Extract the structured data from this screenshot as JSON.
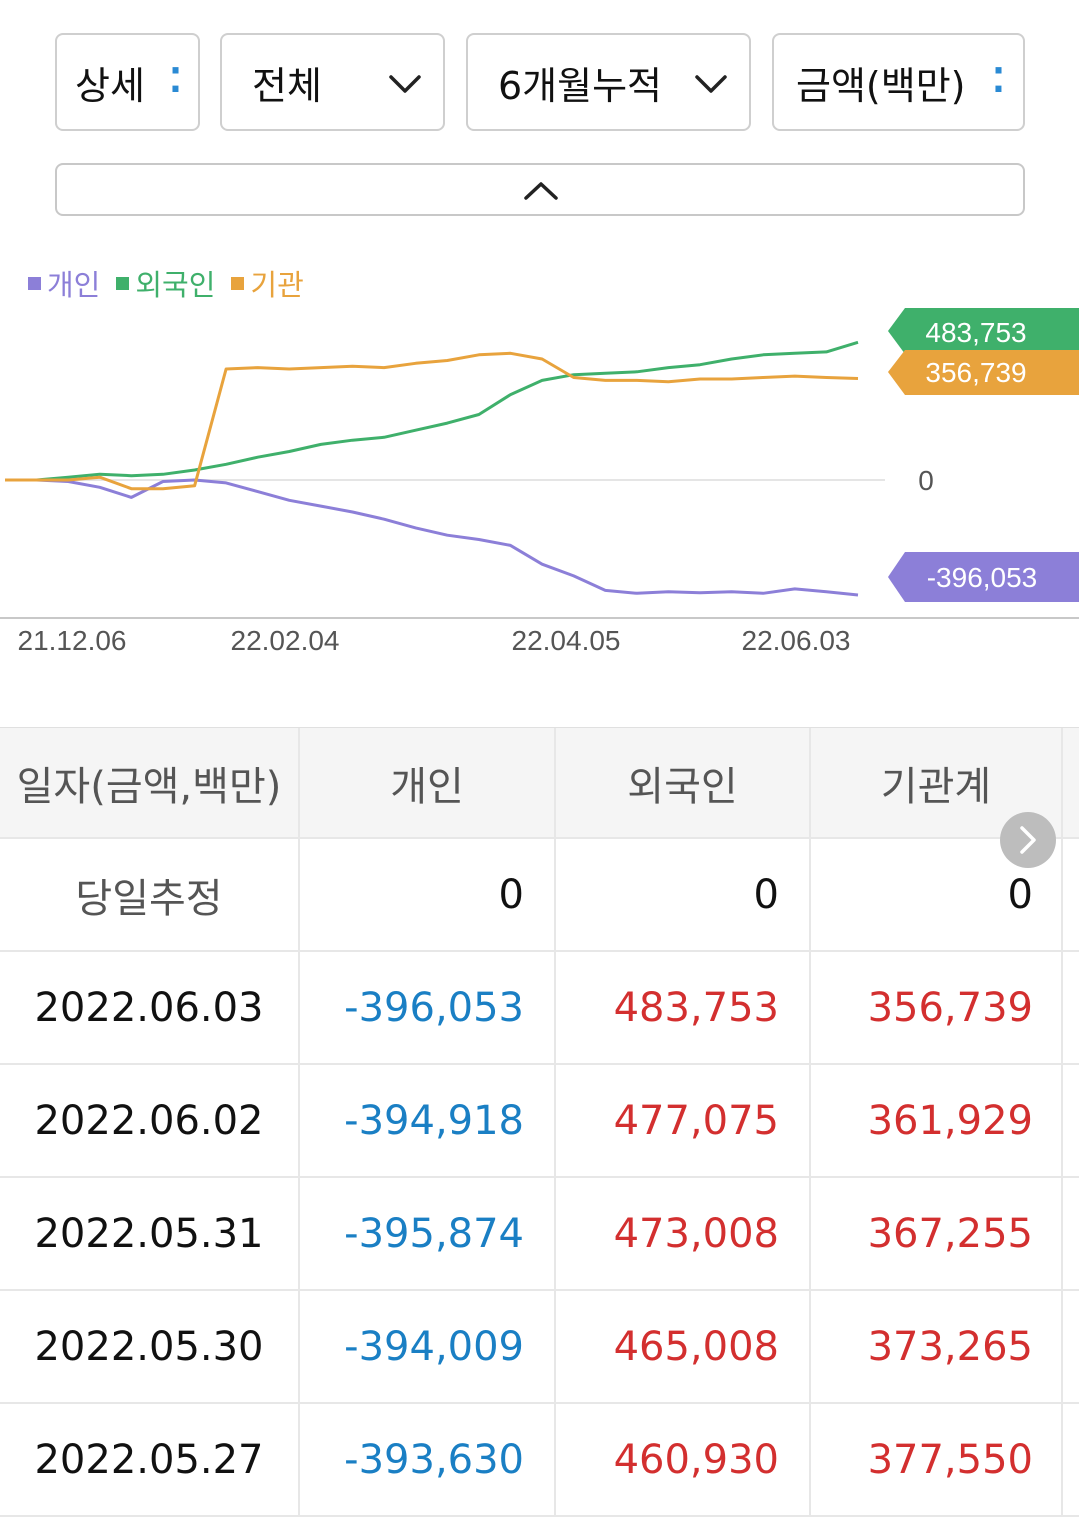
{
  "filters": {
    "detail": "상세",
    "scope": "전체",
    "period": "6개월누적",
    "unit": "금액(백만)"
  },
  "icons": {
    "dots": "more-vert-dots-icon",
    "dropdown": "chevron-down-icon",
    "collapse": "chevron-up-icon",
    "next": "chevron-right-icon"
  },
  "colors": {
    "individual": "#8c7fd8",
    "foreign": "#3fb06b",
    "institution": "#e8a33d",
    "negative": "#1a7fc4",
    "positive": "#d32f2f"
  },
  "chart_data": {
    "type": "line",
    "legend": [
      "개인",
      "외국인",
      "기관"
    ],
    "legend_position": "top-left",
    "x_ticks": [
      "21.12.06",
      "22.02.04",
      "22.04.05",
      "22.06.03"
    ],
    "y_zero_label": "0",
    "end_labels": {
      "foreign": "483,753",
      "institution": "356,739",
      "individual": "-396,053"
    },
    "ylim": [
      -420000,
      520000
    ],
    "series": [
      {
        "name": "개인",
        "key": "individual",
        "values": [
          0,
          0,
          -5000,
          -25000,
          -60000,
          -5000,
          0,
          -10000,
          -40000,
          -70000,
          -90000,
          -110000,
          -135000,
          -165000,
          -190000,
          -205000,
          -225000,
          -290000,
          -330000,
          -380000,
          -390000,
          -385000,
          -388000,
          -385000,
          -390000,
          -375000,
          -385000,
          -396053
        ]
      },
      {
        "name": "외국인",
        "key": "foreign",
        "values": [
          0,
          0,
          10000,
          20000,
          15000,
          20000,
          35000,
          55000,
          80000,
          100000,
          125000,
          140000,
          150000,
          175000,
          200000,
          230000,
          300000,
          350000,
          370000,
          375000,
          380000,
          395000,
          405000,
          425000,
          440000,
          445000,
          450000,
          483753
        ]
      },
      {
        "name": "기관",
        "key": "institution",
        "values": [
          0,
          0,
          0,
          10000,
          -30000,
          -30000,
          -20000,
          390000,
          395000,
          390000,
          395000,
          400000,
          395000,
          410000,
          420000,
          440000,
          445000,
          425000,
          360000,
          350000,
          350000,
          345000,
          355000,
          355000,
          360000,
          365000,
          360000,
          356739
        ]
      }
    ]
  },
  "table": {
    "headers": [
      "일자(금액,백만)",
      "개인",
      "외국인",
      "기관계"
    ],
    "estimate": {
      "label": "당일추정",
      "individual": "0",
      "foreign": "0",
      "institution": "0"
    },
    "rows": [
      {
        "date": "2022.06.03",
        "individual": "-396,053",
        "foreign": "483,753",
        "institution": "356,739"
      },
      {
        "date": "2022.06.02",
        "individual": "-394,918",
        "foreign": "477,075",
        "institution": "361,929"
      },
      {
        "date": "2022.05.31",
        "individual": "-395,874",
        "foreign": "473,008",
        "institution": "367,255"
      },
      {
        "date": "2022.05.30",
        "individual": "-394,009",
        "foreign": "465,008",
        "institution": "373,265"
      },
      {
        "date": "2022.05.27",
        "individual": "-393,630",
        "foreign": "460,930",
        "institution": "377,550"
      }
    ]
  }
}
